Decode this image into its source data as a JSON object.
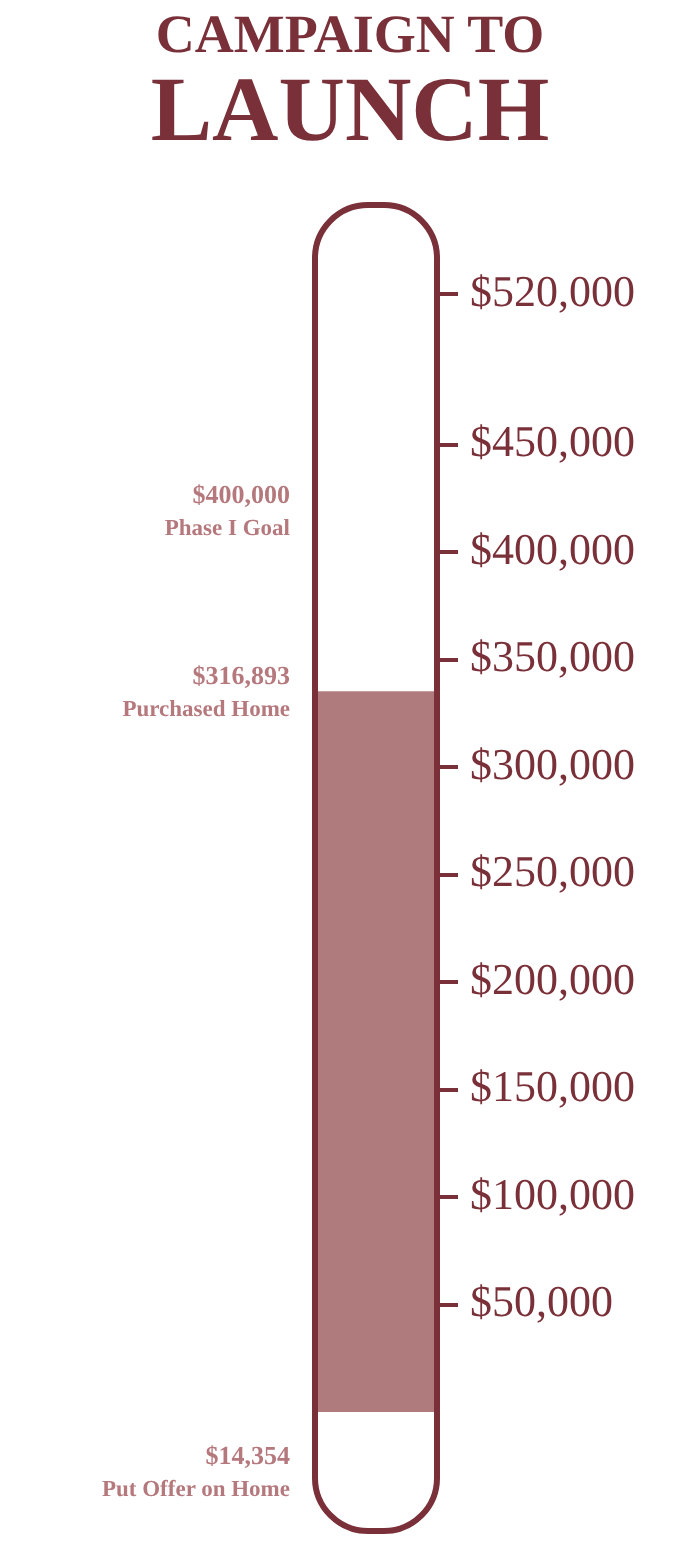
{
  "chart_data": {
    "type": "bar",
    "title": "CAMPAIGN TO",
    "subtitle": "LAUNCH",
    "categories": [
      null
    ],
    "values": [
      335000
    ],
    "color": "#b07b7d",
    "ylim": [
      0,
      560000
    ],
    "yticks": [
      {
        "value": 50000,
        "label": "$50,000"
      },
      {
        "value": 100000,
        "label": "$100,000"
      },
      {
        "value": 150000,
        "label": "$150,000"
      },
      {
        "value": 200000,
        "label": "$200,000"
      },
      {
        "value": 250000,
        "label": "$250,000"
      },
      {
        "value": 300000,
        "label": "$300,000"
      },
      {
        "value": 350000,
        "label": "$350,000"
      },
      {
        "value": 400000,
        "label": "$400,000"
      },
      {
        "value": 450000,
        "label": "$450,000"
      },
      {
        "value": 520000,
        "label": "$520,000"
      }
    ],
    "annotations": [
      "$400,000\nPhase I Goal",
      "$316,893\nPurchased Home",
      "$14,354\nPut Offer on Home"
    ]
  }
}
